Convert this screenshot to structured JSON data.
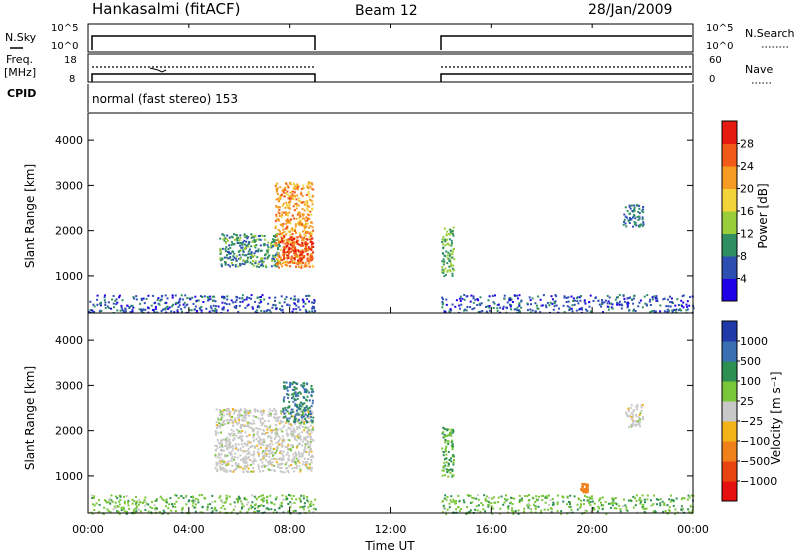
{
  "header": {
    "station": "Hankasalmi (fitACF)",
    "beam": "Beam 12",
    "date": "28/Jan/2009"
  },
  "strip_labels": {
    "nsky": "N.Sky",
    "nsearch": "N.Search",
    "freq": "Freq.",
    "freq_unit": "[MHz]",
    "nave": "Nave",
    "cpid": "CPID",
    "cpid_value": "normal (fast stereo) 153"
  },
  "strip_ticks": {
    "nsky_top": "10^5",
    "nsky_bottom": "10^0",
    "nsearch_top": "10^5",
    "nsearch_bottom": "10^0",
    "freq_top": "18",
    "freq_bottom": "8",
    "nave_top": "60",
    "nave_bottom": "0"
  },
  "axes": {
    "x_label": "Time UT",
    "y_label": "Slant Range [km]",
    "x_ticks": [
      "00:00",
      "04:00",
      "08:00",
      "12:00",
      "16:00",
      "20:00",
      "00:00"
    ],
    "y_ticks": [
      "1000",
      "2000",
      "3000",
      "4000"
    ]
  },
  "colorbars": {
    "power": {
      "label": "Power [dB]",
      "ticks": [
        "4",
        "8",
        "12",
        "16",
        "20",
        "24",
        "28"
      ],
      "colors": [
        "#1f00e6",
        "#2e4fb2",
        "#2f8f63",
        "#9acd3a",
        "#f2d43a",
        "#f59a22",
        "#f25a1a",
        "#e61a10"
      ]
    },
    "velocity": {
      "label": "Velocity [m s⁻¹]",
      "ticks": [
        "1000",
        "500",
        "100",
        "25",
        "−25",
        "−100",
        "−500",
        "−1000"
      ],
      "colors": [
        "#1f3aa8",
        "#3a6fb2",
        "#2e8f52",
        "#7ac63a",
        "#c8c8c8",
        "#f2b21a",
        "#f0801a",
        "#e84412",
        "#e61010"
      ]
    }
  },
  "chart_data": [
    {
      "type": "heatmap",
      "panel": "power",
      "x_range_hours": [
        0,
        24
      ],
      "ylim_km": [
        180,
        4600
      ],
      "data_gap_hours": [
        9.0,
        14.0
      ],
      "regions": [
        {
          "t_start": 5.2,
          "t_end": 7.6,
          "r_start": 1200,
          "r_end": 1950,
          "power_db": 10
        },
        {
          "t_start": 7.4,
          "t_end": 8.9,
          "r_start": 1200,
          "r_end": 3100,
          "power_db": 22
        },
        {
          "t_start": 7.6,
          "t_end": 8.9,
          "r_start": 1300,
          "r_end": 1900,
          "power_db": 28
        },
        {
          "t_start": 14.0,
          "t_end": 14.5,
          "r_start": 1000,
          "r_end": 2100,
          "power_db": 12
        },
        {
          "t_start": 21.2,
          "t_end": 22.0,
          "r_start": 2100,
          "r_end": 2600,
          "power_db": 8
        },
        {
          "t_start": 0.0,
          "t_end": 24.0,
          "r_start": 180,
          "r_end": 600,
          "power_db": 6
        }
      ]
    },
    {
      "type": "heatmap",
      "panel": "velocity",
      "x_range_hours": [
        0,
        24
      ],
      "ylim_km": [
        180,
        4600
      ],
      "data_gap_hours": [
        9.0,
        14.0
      ],
      "regions": [
        {
          "t_start": 5.0,
          "t_end": 8.9,
          "r_start": 1100,
          "r_end": 2500,
          "velocity": 0
        },
        {
          "t_start": 7.7,
          "t_end": 8.9,
          "r_start": 2200,
          "r_end": 3100,
          "velocity": 300
        },
        {
          "t_start": 14.0,
          "t_end": 14.5,
          "r_start": 1000,
          "r_end": 2100,
          "velocity": 60
        },
        {
          "t_start": 21.3,
          "t_end": 22.0,
          "r_start": 2100,
          "r_end": 2600,
          "velocity": 0
        },
        {
          "t_start": 19.5,
          "t_end": 19.8,
          "r_start": 650,
          "r_end": 850,
          "velocity": -150
        },
        {
          "t_start": 0.0,
          "t_end": 24.0,
          "r_start": 180,
          "r_end": 600,
          "velocity": 50
        }
      ]
    }
  ]
}
